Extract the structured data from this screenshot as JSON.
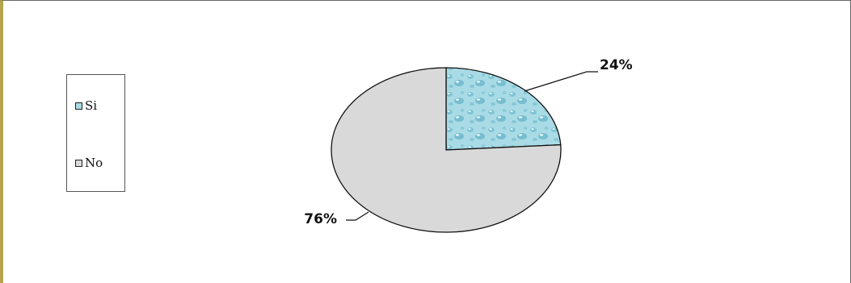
{
  "chart_data": {
    "type": "pie",
    "slices": [
      {
        "label": "Si",
        "value": 24,
        "display": "24%",
        "color": "#a9dbe6"
      },
      {
        "label": "No",
        "value": 76,
        "display": "76%",
        "color": "#d9d9d9"
      }
    ],
    "legend_position": "left",
    "title": "",
    "slice_outline_color": "#111111"
  }
}
